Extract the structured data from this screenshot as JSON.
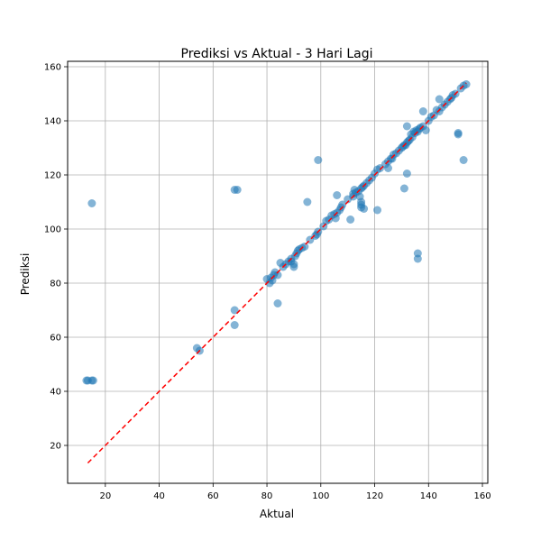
{
  "chart_data": {
    "type": "scatter",
    "title": "Prediksi vs Aktual - 3 Hari Lagi",
    "xlabel": "Aktual",
    "ylabel": "Prediksi",
    "xlim": [
      6,
      162
    ],
    "ylim": [
      6,
      162
    ],
    "xticks": [
      20,
      40,
      60,
      80,
      100,
      120,
      140,
      160
    ],
    "yticks": [
      20,
      40,
      60,
      80,
      100,
      120,
      140,
      160
    ],
    "grid": true,
    "reference_line": {
      "from": [
        13.5,
        13.5
      ],
      "to": [
        154,
        154
      ],
      "color": "#ff0000",
      "style": "dashed"
    },
    "point_color": "#1f77b4",
    "points": [
      [
        13,
        44
      ],
      [
        13.5,
        44
      ],
      [
        15,
        44
      ],
      [
        15.5,
        44
      ],
      [
        15,
        109.5
      ],
      [
        54,
        56
      ],
      [
        55,
        55
      ],
      [
        68,
        114.5
      ],
      [
        69,
        114.5
      ],
      [
        68,
        70
      ],
      [
        68,
        64.5
      ],
      [
        80,
        81.5
      ],
      [
        81,
        80
      ],
      [
        81.5,
        82
      ],
      [
        82,
        81
      ],
      [
        82.5,
        83
      ],
      [
        83,
        84
      ],
      [
        84,
        72.5
      ],
      [
        84,
        83
      ],
      [
        85,
        87.5
      ],
      [
        86,
        86
      ],
      [
        87,
        87
      ],
      [
        88,
        88
      ],
      [
        89,
        89
      ],
      [
        89,
        88
      ],
      [
        90,
        87
      ],
      [
        90,
        86
      ],
      [
        90.5,
        90
      ],
      [
        91,
        91
      ],
      [
        91.5,
        92
      ],
      [
        92,
        92.5
      ],
      [
        93,
        93
      ],
      [
        94,
        93.5
      ],
      [
        95,
        110
      ],
      [
        96,
        96
      ],
      [
        98,
        97.5
      ],
      [
        98.5,
        98
      ],
      [
        99,
        99
      ],
      [
        99,
        125.5
      ],
      [
        101,
        101
      ],
      [
        102,
        103
      ],
      [
        103,
        103.5
      ],
      [
        104,
        105
      ],
      [
        105,
        105.5
      ],
      [
        105.5,
        104
      ],
      [
        106,
        106
      ],
      [
        106,
        112.5
      ],
      [
        107,
        107
      ],
      [
        107.5,
        108
      ],
      [
        108,
        109
      ],
      [
        110,
        111
      ],
      [
        111,
        103.5
      ],
      [
        112,
        112
      ],
      [
        112,
        113
      ],
      [
        112.5,
        114.5
      ],
      [
        113,
        113.5
      ],
      [
        114,
        114
      ],
      [
        114.5,
        112
      ],
      [
        115,
        115
      ],
      [
        115,
        108
      ],
      [
        115,
        109
      ],
      [
        115,
        110
      ],
      [
        115.5,
        115.5
      ],
      [
        116,
        116
      ],
      [
        116,
        107.5
      ],
      [
        117,
        117
      ],
      [
        118,
        118
      ],
      [
        119,
        119
      ],
      [
        120,
        120.5
      ],
      [
        121,
        122
      ],
      [
        121,
        107
      ],
      [
        122,
        122.5
      ],
      [
        124,
        124
      ],
      [
        125,
        125
      ],
      [
        125,
        122.5
      ],
      [
        126,
        126
      ],
      [
        126.5,
        126
      ],
      [
        127,
        127.5
      ],
      [
        128,
        128
      ],
      [
        129,
        129
      ],
      [
        130,
        130
      ],
      [
        130.5,
        130.5
      ],
      [
        131,
        115
      ],
      [
        131,
        131
      ],
      [
        131.5,
        131
      ],
      [
        132,
        132
      ],
      [
        132,
        120.5
      ],
      [
        132,
        138
      ],
      [
        132.5,
        132.5
      ],
      [
        133,
        133
      ],
      [
        133.5,
        135
      ],
      [
        134,
        134
      ],
      [
        134.5,
        136
      ],
      [
        135,
        135.5
      ],
      [
        135.5,
        136.5
      ],
      [
        136,
        136
      ],
      [
        136,
        91
      ],
      [
        136,
        89
      ],
      [
        136.5,
        137
      ],
      [
        137,
        137.5
      ],
      [
        138,
        138
      ],
      [
        138,
        143.5
      ],
      [
        139,
        136.5
      ],
      [
        140,
        140
      ],
      [
        141,
        141.5
      ],
      [
        142,
        142
      ],
      [
        143,
        144
      ],
      [
        144,
        143.5
      ],
      [
        144,
        148
      ],
      [
        145,
        145
      ],
      [
        146,
        146
      ],
      [
        147,
        147
      ],
      [
        148,
        148
      ],
      [
        148.5,
        148.5
      ],
      [
        149,
        149.5
      ],
      [
        150,
        150
      ],
      [
        151,
        135
      ],
      [
        151,
        135.5
      ],
      [
        152,
        152
      ],
      [
        153,
        125.5
      ],
      [
        153,
        153
      ],
      [
        154,
        153.5
      ]
    ]
  }
}
